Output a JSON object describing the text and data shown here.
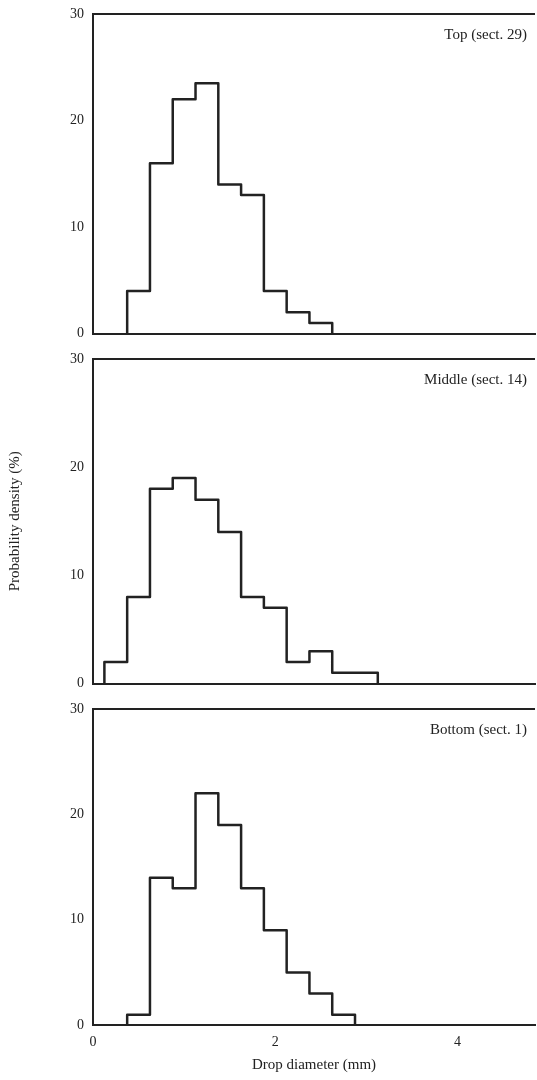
{
  "chart_data": [
    {
      "type": "histogram",
      "color": "#222222",
      "annotations": [
        "Top (sect. 29)"
      ],
      "bins": [
        0.375,
        0.625,
        0.875,
        1.125,
        1.375,
        1.625,
        1.875,
        2.125,
        2.375,
        2.625
      ],
      "values": [
        4,
        16,
        22,
        23.5,
        14,
        13,
        4,
        2,
        1
      ],
      "xlim": [
        0,
        4.85
      ],
      "xticks": [
        0,
        2,
        4
      ],
      "ylim": [
        0,
        30
      ],
      "yticks": [
        0,
        10,
        20,
        30
      ],
      "tick_labels": "y"
    },
    {
      "type": "histogram",
      "color": "#222222",
      "ylabel": "Probability density (%)",
      "annotations": [
        "Middle (sect. 14)"
      ],
      "bins": [
        0.125,
        0.375,
        0.625,
        0.875,
        1.125,
        1.375,
        1.625,
        1.875,
        2.125,
        2.375,
        2.625,
        2.875,
        3.125
      ],
      "values": [
        2,
        8,
        18,
        19,
        17,
        14,
        8,
        7,
        2,
        3,
        1,
        1
      ],
      "xlim": [
        0,
        4.85
      ],
      "xticks": [
        0,
        2,
        4
      ],
      "ylim": [
        0,
        30
      ],
      "yticks": [
        0,
        10,
        20,
        30
      ],
      "tick_labels": "y"
    },
    {
      "type": "histogram",
      "color": "#222222",
      "xlabel": "Drop diameter (mm)",
      "annotations": [
        "Bottom (sect. 1)"
      ],
      "bins": [
        0.375,
        0.625,
        0.875,
        1.125,
        1.375,
        1.625,
        1.875,
        2.125,
        2.375,
        2.625,
        2.875
      ],
      "values": [
        1,
        14,
        13,
        22,
        19,
        13,
        9,
        5,
        3,
        1
      ],
      "xlim": [
        0,
        4.85
      ],
      "xticks": [
        0,
        2,
        4
      ],
      "ylim": [
        0,
        30
      ],
      "yticks": [
        0,
        10,
        20,
        30
      ]
    }
  ]
}
